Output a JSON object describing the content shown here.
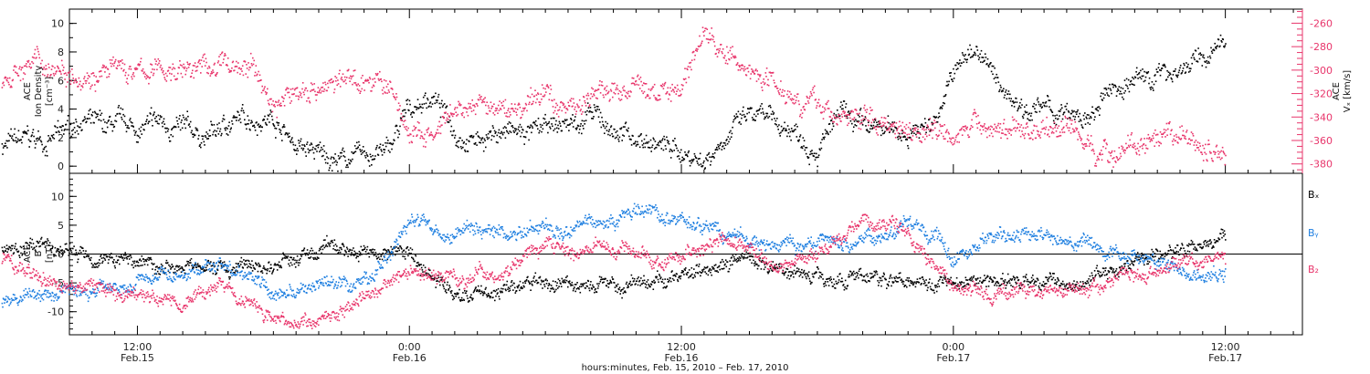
{
  "colors": {
    "black": "#000000",
    "pink": "#e8356b",
    "blue": "#1f7fe0"
  },
  "chart_data": [
    {
      "type": "scatter",
      "panel": "top",
      "ylabel": [
        "ACE",
        "Ion Density",
        "[cm⁻³]"
      ],
      "y2label": [
        "ACE",
        "Vₓ [km/s]"
      ],
      "ylim": [
        -0.5,
        11
      ],
      "y_ticks": [
        0,
        2,
        4,
        6,
        8,
        10
      ],
      "y2lim": [
        -388,
        -248
      ],
      "y2_ticks": [
        -260,
        -280,
        -300,
        -320,
        -340,
        -360,
        -380
      ],
      "series": [
        {
          "color": "black",
          "axis": "left",
          "x_hours": [
            6.0,
            7.0,
            8.0,
            9.0,
            9.5,
            10.5,
            11.0,
            12.0,
            13.0,
            14.0,
            15.0,
            16.0,
            17.0,
            18.0,
            19.0,
            20.0,
            21.0,
            22.0,
            23.0,
            24.0,
            25.0,
            26.0,
            27.0,
            28.0,
            29.0,
            30.0,
            31.0,
            32.0,
            33.0,
            34.0,
            35.0,
            36.0,
            37.0,
            38.0,
            39.0,
            40.0,
            41.0,
            42.0,
            43.0,
            44.0,
            45.0,
            46.0,
            47.0,
            48.0,
            49.0,
            50.0,
            51.0,
            52.0,
            53.0,
            54.0,
            55.0,
            56.0,
            57.0,
            58.0,
            59.0,
            60.0
          ],
          "values": [
            1.5,
            1.8,
            1.8,
            2.5,
            3.5,
            2.5,
            2.8,
            2.5,
            3.0,
            2.5,
            2.0,
            3.0,
            3.5,
            3.5,
            1.5,
            0.8,
            0.5,
            0.8,
            1.0,
            4.0,
            5.0,
            2.5,
            2.0,
            2.5,
            2.2,
            2.5,
            3.0,
            3.5,
            2.5,
            2.0,
            1.5,
            1.0,
            0.5,
            2.5,
            3.5,
            3.0,
            2.5,
            1.5,
            3.5,
            2.5,
            2.5,
            2.5,
            3.0,
            6.5,
            8.5,
            5.5,
            4.5,
            4.0,
            3.5,
            3.0,
            5.5,
            6.0,
            6.5,
            7.0,
            7.5,
            8.5
          ]
        },
        {
          "color": "pink",
          "axis": "right",
          "x_hours": [
            6.0,
            7.0,
            8.0,
            9.0,
            10.0,
            11.0,
            12.0,
            13.0,
            14.0,
            15.0,
            16.0,
            17.0,
            18.0,
            19.0,
            20.0,
            21.0,
            22.0,
            23.0,
            24.0,
            25.0,
            26.0,
            27.0,
            28.0,
            29.0,
            30.0,
            31.0,
            32.0,
            33.0,
            34.0,
            35.0,
            36.0,
            37.0,
            38.0,
            39.0,
            40.0,
            41.0,
            42.0,
            43.0,
            44.0,
            45.0,
            46.0,
            47.0,
            48.0,
            49.0,
            50.0,
            51.0,
            52.0,
            53.0,
            54.0,
            55.0,
            56.0,
            57.0,
            58.0,
            59.0,
            60.0
          ],
          "values": [
            -305,
            -295,
            -295,
            -298,
            -300,
            -300,
            -302,
            -300,
            -298,
            -297,
            -295,
            -296,
            -330,
            -318,
            -312,
            -310,
            -306,
            -312,
            -355,
            -358,
            -340,
            -330,
            -335,
            -332,
            -320,
            -330,
            -320,
            -318,
            -315,
            -320,
            -310,
            -265,
            -290,
            -300,
            -305,
            -318,
            -330,
            -340,
            -340,
            -345,
            -345,
            -348,
            -348,
            -348,
            -349,
            -350,
            -350,
            -345,
            -365,
            -370,
            -362,
            -368,
            -358,
            -365,
            -372
          ]
        }
      ]
    },
    {
      "type": "scatter",
      "panel": "bottom",
      "ylabel": [
        "ACE",
        "B",
        "[nT]"
      ],
      "ylim": [
        -14,
        14
      ],
      "y_ticks": [
        -10,
        -5,
        0,
        5,
        10
      ],
      "legend": [
        "Bₓ",
        "Bᵧ",
        "B₂"
      ],
      "series": [
        {
          "name": "Bₓ",
          "color": "black",
          "x_hours": [
            6.0,
            8.0,
            10.0,
            12.0,
            14.0,
            16.0,
            18.0,
            20.0,
            22.0,
            24.0,
            26.0,
            28.0,
            30.0,
            32.0,
            34.0,
            36.0,
            38.0,
            40.0,
            42.0,
            44.0,
            46.0,
            48.0,
            50.0,
            52.0,
            54.0,
            56.0,
            58.0,
            60.0
          ],
          "values": [
            1.5,
            1.0,
            0.0,
            -1.0,
            -2.0,
            -2.5,
            -2.0,
            0.5,
            1.0,
            0.0,
            -7.0,
            -6.0,
            -5.0,
            -5.5,
            -5.0,
            -4.0,
            -0.5,
            -2.0,
            -3.5,
            -4.5,
            -4.0,
            -4.5,
            -4.5,
            -5.0,
            -4.0,
            -1.5,
            0.5,
            3.0
          ]
        },
        {
          "name": "Bᵧ",
          "color": "blue",
          "x_hours": [
            6.0,
            8.0,
            10.0,
            12.0,
            14.0,
            16.0,
            18.0,
            20.0,
            22.0,
            24.0,
            26.0,
            28.0,
            30.0,
            32.0,
            34.0,
            36.0,
            38.0,
            40.0,
            42.0,
            44.0,
            46.0,
            48.0,
            50.0,
            52.0,
            54.0,
            56.0,
            58.0,
            60.0
          ],
          "values": [
            -8.0,
            -7.0,
            -6.0,
            -4.0,
            -3.0,
            -2.0,
            -7.0,
            -6.0,
            -5.0,
            5.0,
            4.0,
            3.5,
            5.0,
            6.0,
            7.0,
            6.0,
            3.0,
            1.5,
            2.0,
            3.0,
            5.0,
            0.0,
            3.0,
            2.5,
            1.0,
            0.0,
            -3.0,
            -3.5
          ]
        },
        {
          "name": "B₂",
          "color": "pink",
          "x_hours": [
            6.0,
            8.0,
            10.0,
            12.0,
            14.0,
            16.0,
            18.0,
            20.0,
            22.0,
            24.0,
            26.0,
            28.0,
            30.0,
            32.0,
            34.0,
            36.0,
            38.0,
            40.0,
            42.0,
            44.0,
            46.0,
            48.0,
            50.0,
            52.0,
            54.0,
            56.0,
            58.0,
            60.0
          ],
          "values": [
            -1.0,
            -5.0,
            -6.0,
            -7.0,
            -7.5,
            -5.0,
            -12.0,
            -11.0,
            -8.0,
            -2.0,
            -4.0,
            -3.0,
            2.0,
            1.0,
            0.0,
            -1.0,
            3.0,
            -2.0,
            0.0,
            7.0,
            3.0,
            -5.0,
            -7.0,
            -6.0,
            -5.5,
            -3.0,
            -1.0,
            0.0
          ]
        }
      ]
    }
  ],
  "x_axis": {
    "label": "hours:minutes, Feb. 15, 2010 – Feb. 17, 2010",
    "ticks": [
      {
        "hour": 12,
        "time": "12:00",
        "date": "Feb.15"
      },
      {
        "hour": 24,
        "time": "0:00",
        "date": "Feb.16"
      },
      {
        "hour": 36,
        "time": "12:00",
        "date": "Feb.16"
      },
      {
        "hour": 48,
        "time": "0:00",
        "date": "Feb.17"
      },
      {
        "hour": 60,
        "time": "12:00",
        "date": "Feb.17"
      }
    ],
    "xlim_hours": [
      9.0,
      63.4
    ],
    "minor_step_hours": 1
  }
}
